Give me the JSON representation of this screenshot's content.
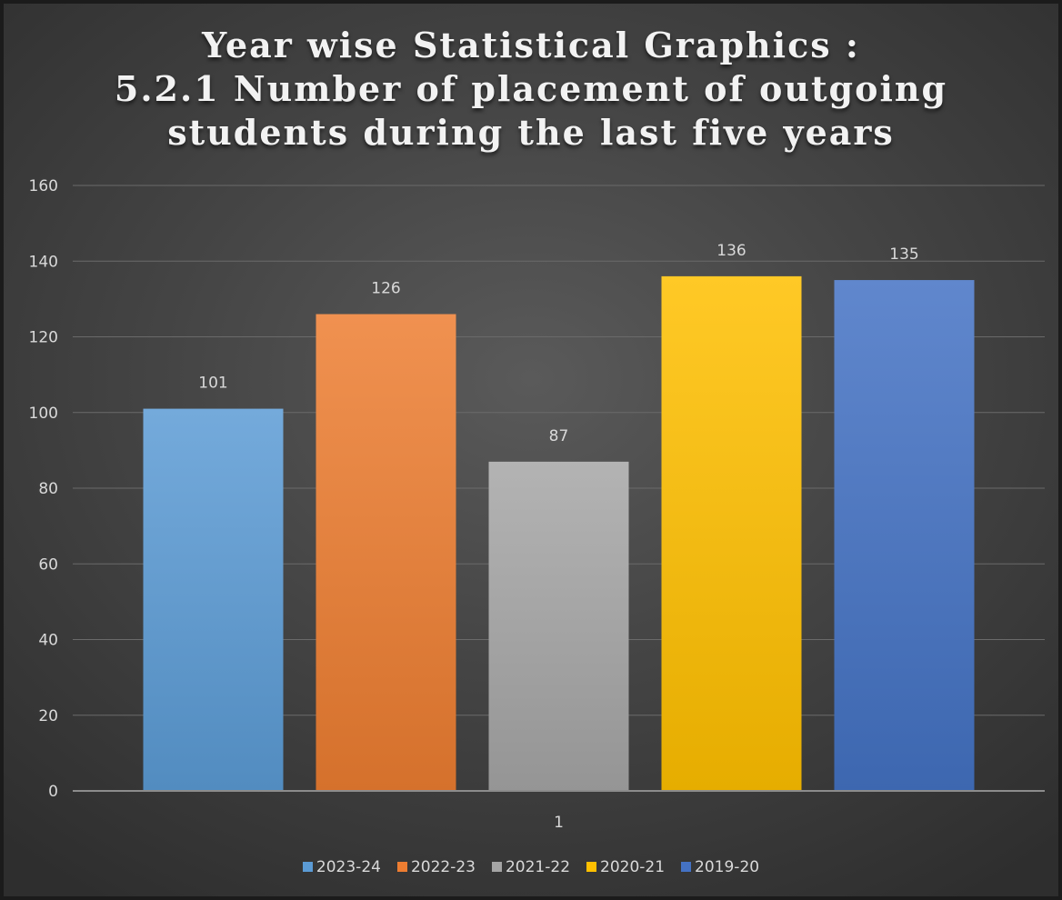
{
  "chart_data": {
    "type": "bar",
    "title": [
      "Year wise Statistical Graphics :",
      "5.2.1 Number of placement of outgoing",
      "students during the last five years"
    ],
    "categories": [
      "1"
    ],
    "series": [
      {
        "name": "2023-24",
        "values": [
          101
        ],
        "color": "#5b9bd5"
      },
      {
        "name": "2022-23",
        "values": [
          126
        ],
        "color": "#ed7d31"
      },
      {
        "name": "2021-22",
        "values": [
          87
        ],
        "color": "#a5a5a5"
      },
      {
        "name": "2020-21",
        "values": [
          136
        ],
        "color": "#ffc000"
      },
      {
        "name": "2019-20",
        "values": [
          135
        ],
        "color": "#4472c4"
      }
    ],
    "ylim": [
      0,
      160
    ],
    "yticks": [
      0,
      20,
      40,
      60,
      80,
      100,
      120,
      140,
      160
    ],
    "data_labels": true,
    "grid": true,
    "legend": "bottom"
  }
}
